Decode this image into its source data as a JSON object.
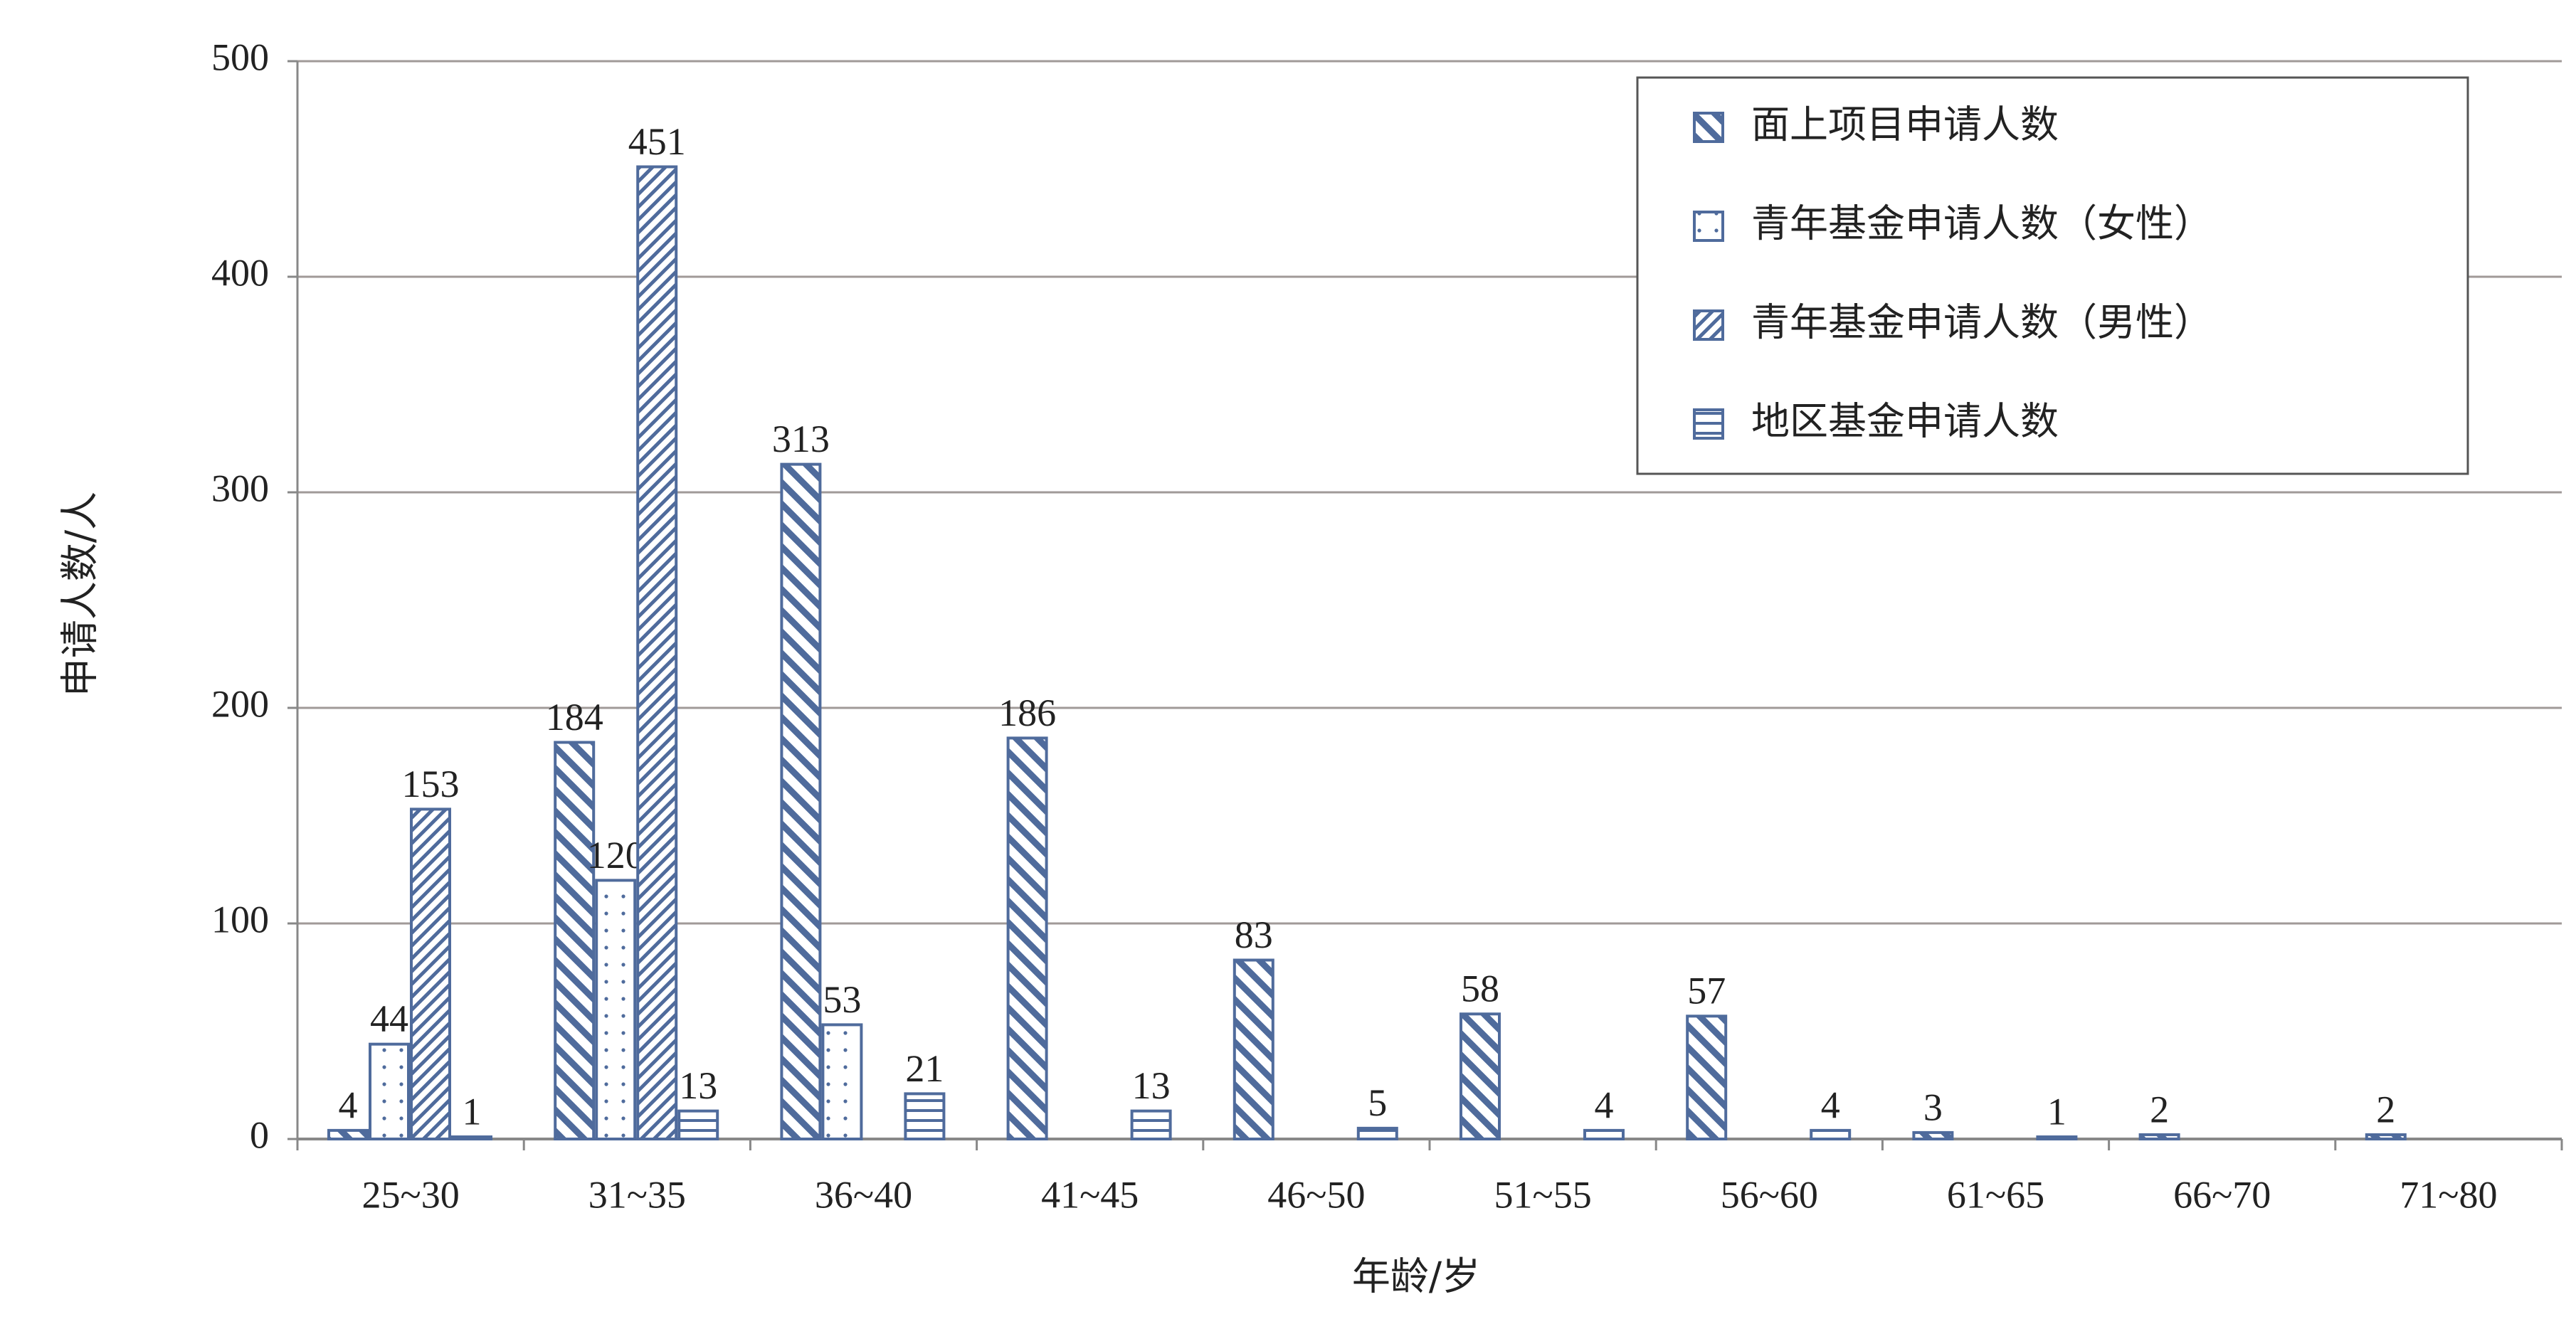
{
  "chart_data": {
    "type": "bar",
    "y_label": "申请人数/人",
    "x_label": "年龄/岁",
    "categories": [
      "25~30",
      "31~35",
      "36~40",
      "41~45",
      "46~50",
      "51~55",
      "56~60",
      "61~65",
      "66~70",
      "71~80"
    ],
    "series": [
      {
        "name": "面上项目申请人数",
        "color": "#4f6b9c",
        "pattern": "backslash",
        "values": [
          4,
          184,
          313,
          186,
          83,
          58,
          57,
          3,
          2,
          2
        ]
      },
      {
        "name": "青年基金申请人数（女性）",
        "color": "#4f6b9c",
        "pattern": "dots",
        "values": [
          44,
          120,
          53,
          null,
          null,
          null,
          null,
          null,
          null,
          null
        ]
      },
      {
        "name": "青年基金申请人数（男性）",
        "color": "#4f6b9c",
        "pattern": "slash",
        "values": [
          153,
          451,
          null,
          null,
          null,
          null,
          null,
          null,
          null,
          null
        ]
      },
      {
        "name": "地区基金申请人数",
        "color": "#4f6b9c",
        "pattern": "horizontal",
        "values": [
          1,
          13,
          21,
          13,
          5,
          4,
          4,
          1,
          null,
          null
        ]
      }
    ],
    "ylim": [
      0,
      500
    ],
    "yticks": [
      0,
      100,
      200,
      300,
      400,
      500
    ],
    "grid": true,
    "legend": "upper right"
  }
}
